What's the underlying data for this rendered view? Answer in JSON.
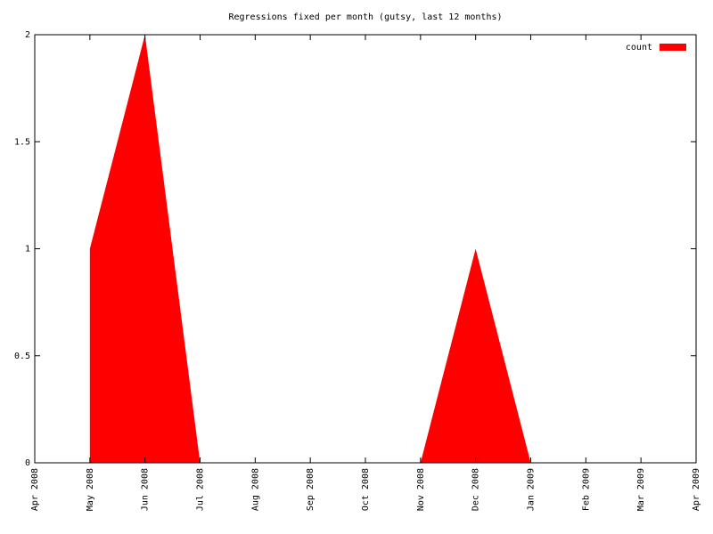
{
  "chart_data": {
    "type": "area",
    "title": "Regressions fixed per month (gutsy, last 12 months)",
    "x": [
      "May 2008",
      "Jun 2008",
      "Jul 2008",
      "Aug 2008",
      "Sep 2008",
      "Oct 2008",
      "Nov 2008",
      "Dec 2008",
      "Jan 2009",
      "Feb 2009",
      "Mar 2009"
    ],
    "series": [
      {
        "name": "count",
        "color": "#ff0000",
        "values": [
          1,
          2,
          0,
          0,
          0,
          0,
          0,
          1,
          0,
          0,
          0
        ]
      }
    ],
    "xticks": [
      "Apr 2008",
      "May 2008",
      "Jun 2008",
      "Jul 2008",
      "Aug 2008",
      "Sep 2008",
      "Oct 2008",
      "Nov 2008",
      "Dec 2008",
      "Jan 2009",
      "Feb 2009",
      "Mar 2009",
      "Apr 2009"
    ],
    "ylim": [
      0,
      2
    ],
    "yticks": [
      0,
      0.5,
      1,
      1.5,
      2
    ],
    "legend": "top-right"
  }
}
